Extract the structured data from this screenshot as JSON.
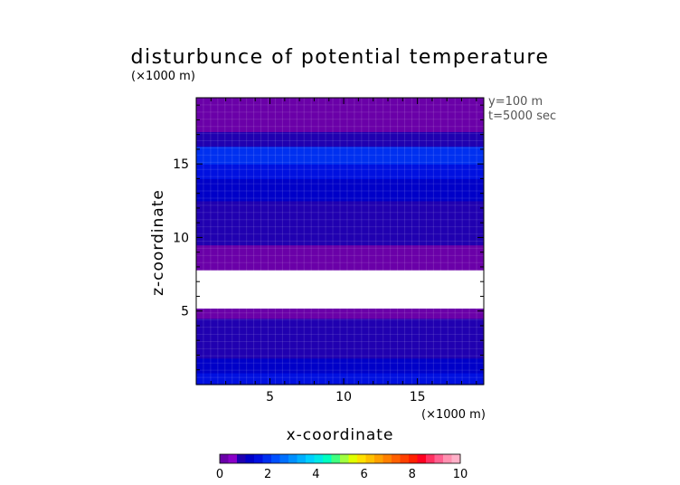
{
  "chart_data": {
    "type": "heatmap",
    "title": "disturbunce of potential temperature",
    "xlabel": "x-coordinate",
    "ylabel": "z-coordinate",
    "x_unit_label": "(×1000 m)",
    "y_unit_label": "(×1000 m)",
    "annotations": [
      "y=100 m",
      "t=5000 sec"
    ],
    "xlim": [
      0,
      19.5
    ],
    "ylim": [
      0,
      19.5
    ],
    "x_ticks": [
      5,
      10,
      15
    ],
    "y_ticks": [
      5,
      10,
      15
    ],
    "z_bands": [
      {
        "z": [
          0.0,
          0.8
        ],
        "value": 1.5
      },
      {
        "z": [
          0.8,
          1.8
        ],
        "value": 1.2
      },
      {
        "z": [
          1.8,
          3.0
        ],
        "value": 1.0
      },
      {
        "z": [
          3.0,
          4.5
        ],
        "value": 0.9
      },
      {
        "z": [
          4.5,
          5.2
        ],
        "value": 0.2
      },
      {
        "z": [
          5.2,
          7.8
        ],
        "value": null
      },
      {
        "z": [
          7.8,
          8.5
        ],
        "value": 0.1
      },
      {
        "z": [
          8.5,
          9.5
        ],
        "value": 0.3
      },
      {
        "z": [
          9.5,
          11.0
        ],
        "value": 0.8
      },
      {
        "z": [
          11.0,
          12.5
        ],
        "value": 1.0
      },
      {
        "z": [
          12.5,
          14.0
        ],
        "value": 1.2
      },
      {
        "z": [
          14.0,
          15.0
        ],
        "value": 1.6
      },
      {
        "z": [
          15.0,
          16.2
        ],
        "value": 1.9
      },
      {
        "z": [
          16.2,
          17.2
        ],
        "value": 1.0
      },
      {
        "z": [
          17.2,
          19.5
        ],
        "value": 0.1
      }
    ],
    "colorbar": {
      "ticks": [
        0,
        2,
        4,
        6,
        8,
        10
      ],
      "range": [
        0,
        10
      ],
      "colors": [
        "#6a00a8",
        "#8a00c8",
        "#2000b0",
        "#0000c8",
        "#0010e0",
        "#0030f0",
        "#0050ff",
        "#0070ff",
        "#0090ff",
        "#00b0ff",
        "#00d0ff",
        "#00e8e8",
        "#00ffc0",
        "#40ff80",
        "#a0ff40",
        "#e0ff00",
        "#ffe000",
        "#ffc000",
        "#ffa000",
        "#ff8000",
        "#ff6000",
        "#ff4000",
        "#ff2000",
        "#ff0020",
        "#ff3060",
        "#ff6090",
        "#ff90b0",
        "#ffb0c8"
      ]
    }
  }
}
